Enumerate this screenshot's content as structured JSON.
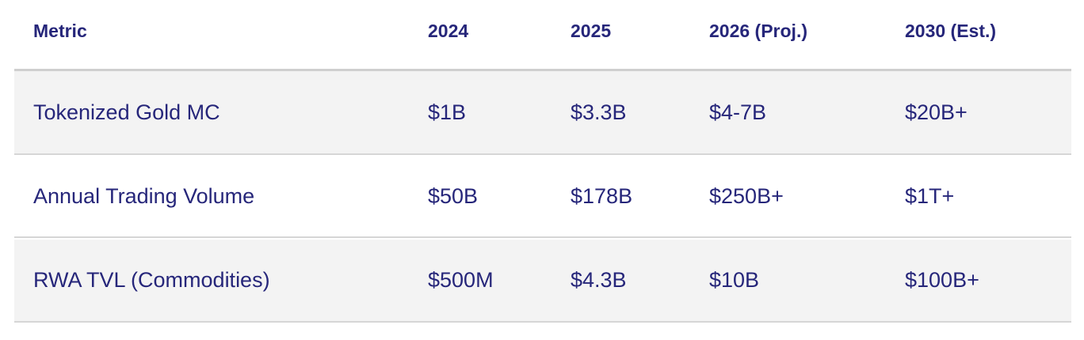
{
  "table": {
    "columns": [
      "Metric",
      "2024",
      "2025",
      "2026 (Proj.)",
      "2030 (Est.)"
    ],
    "rows": [
      [
        "Tokenized Gold MC",
        "$1B",
        "$3.3B",
        "$4-7B",
        "$20B+"
      ],
      [
        "Annual Trading Volume",
        "$50B",
        "$178B",
        "$250B+",
        "$1T+"
      ],
      [
        "RWA TVL (Commodities)",
        "$500M",
        "$4.3B",
        "$10B",
        "$100B+"
      ]
    ]
  }
}
